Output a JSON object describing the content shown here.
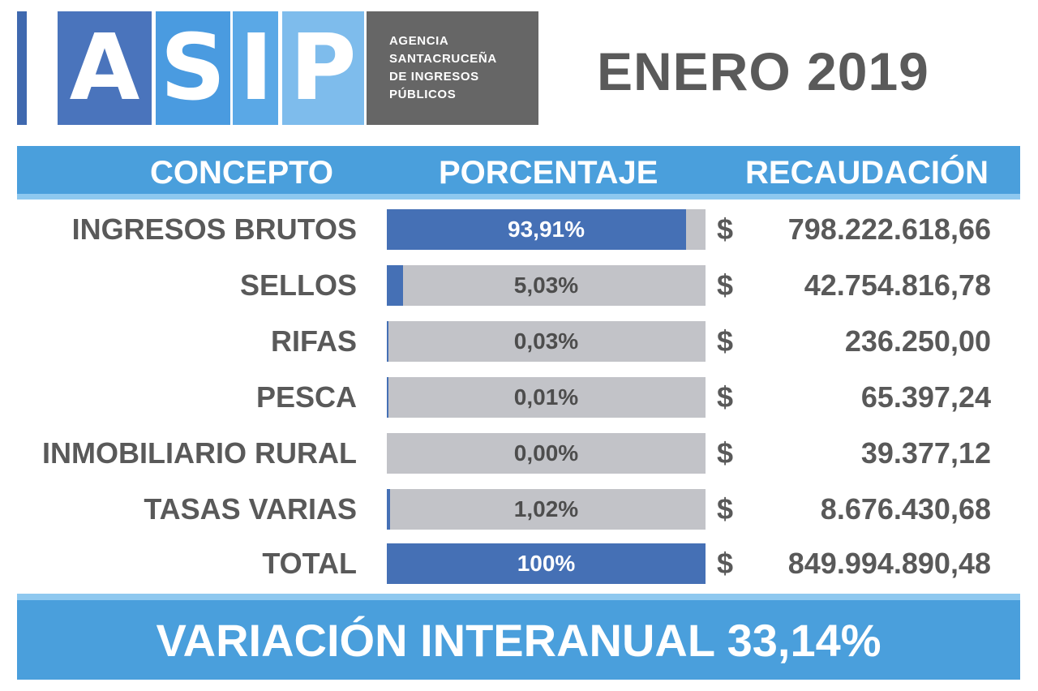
{
  "logo": {
    "letters": [
      "A",
      "S",
      "I",
      "P"
    ],
    "agency_lines": [
      "AGENCIA",
      "SANTACRUCEÑA",
      "DE INGRESOS",
      "PÚBLICOS"
    ]
  },
  "period": "ENERO 2019",
  "chart_data": {
    "type": "table",
    "columns": [
      "CONCEPTO",
      "PORCENTAJE",
      "RECAUDACIÓN"
    ],
    "rows": [
      {
        "concept": "INGRESOS BRUTOS",
        "percent_label": "93,91%",
        "percent": 93.91,
        "currency": "$",
        "amount": "798.222.618,66"
      },
      {
        "concept": "SELLOS",
        "percent_label": "5,03%",
        "percent": 5.03,
        "currency": "$",
        "amount": "42.754.816,78"
      },
      {
        "concept": "RIFAS",
        "percent_label": "0,03%",
        "percent": 0.03,
        "currency": "$",
        "amount": "236.250,00"
      },
      {
        "concept": "PESCA",
        "percent_label": "0,01%",
        "percent": 0.01,
        "currency": "$",
        "amount": "65.397,24"
      },
      {
        "concept": "INMOBILIARIO RURAL",
        "percent_label": "0,00%",
        "percent": 0.0,
        "currency": "$",
        "amount": "39.377,12"
      },
      {
        "concept": "TASAS VARIAS",
        "percent_label": "1,02%",
        "percent": 1.02,
        "currency": "$",
        "amount": "8.676.430,68"
      },
      {
        "concept": "TOTAL",
        "percent_label": "100%",
        "percent": 100,
        "currency": "$",
        "amount": "849.994.890,48"
      }
    ]
  },
  "footer": "VARIACIÓN INTERANUAL 33,14%",
  "colors": {
    "bar_fill": "#4570b5",
    "bar_track": "#c2c3c8",
    "header_blue": "#4a9fdc",
    "text_gray": "#595959"
  }
}
